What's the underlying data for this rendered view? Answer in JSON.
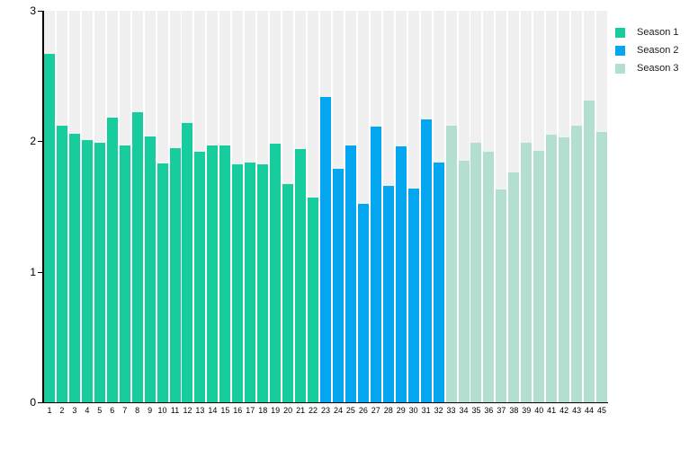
{
  "chart_data": {
    "type": "bar",
    "title": "",
    "xlabel": "",
    "ylabel": "",
    "ylim": [
      0,
      3
    ],
    "yticks": [
      0,
      1,
      2,
      3
    ],
    "grid": false,
    "legend_position": "top-right",
    "categories": [
      "1",
      "2",
      "3",
      "4",
      "5",
      "6",
      "7",
      "8",
      "9",
      "10",
      "11",
      "12",
      "13",
      "14",
      "15",
      "16",
      "17",
      "18",
      "19",
      "20",
      "21",
      "22",
      "23",
      "24",
      "25",
      "26",
      "27",
      "28",
      "29",
      "30",
      "31",
      "32",
      "33",
      "34",
      "35",
      "36",
      "37",
      "38",
      "39",
      "40",
      "41",
      "42",
      "43",
      "44",
      "45"
    ],
    "series": [
      {
        "name": "Season 1",
        "color": "#17cd9e",
        "start": 1,
        "values": [
          2.67,
          2.12,
          2.06,
          2.01,
          1.99,
          2.18,
          1.97,
          2.22,
          2.04,
          1.83,
          1.95,
          2.14,
          1.92,
          1.97,
          1.97,
          1.82,
          1.84,
          1.82,
          1.98,
          1.67,
          1.94,
          1.57
        ]
      },
      {
        "name": "Season 2",
        "color": "#04a6f0",
        "start": 23,
        "values": [
          2.34,
          1.79,
          1.97,
          1.52,
          2.11,
          1.66,
          1.96,
          1.64,
          2.17,
          1.84
        ]
      },
      {
        "name": "Season 3",
        "color": "#b2dfd0",
        "start": 33,
        "values": [
          2.12,
          1.85,
          1.99,
          1.92,
          1.63,
          1.76,
          1.99,
          1.93,
          2.05,
          2.03,
          2.12,
          2.31,
          2.07
        ]
      }
    ],
    "colors": {
      "plot_background": "#ffffff",
      "column_background": "#f0f0f0",
      "axis": "#000000",
      "text": "#000000"
    }
  }
}
